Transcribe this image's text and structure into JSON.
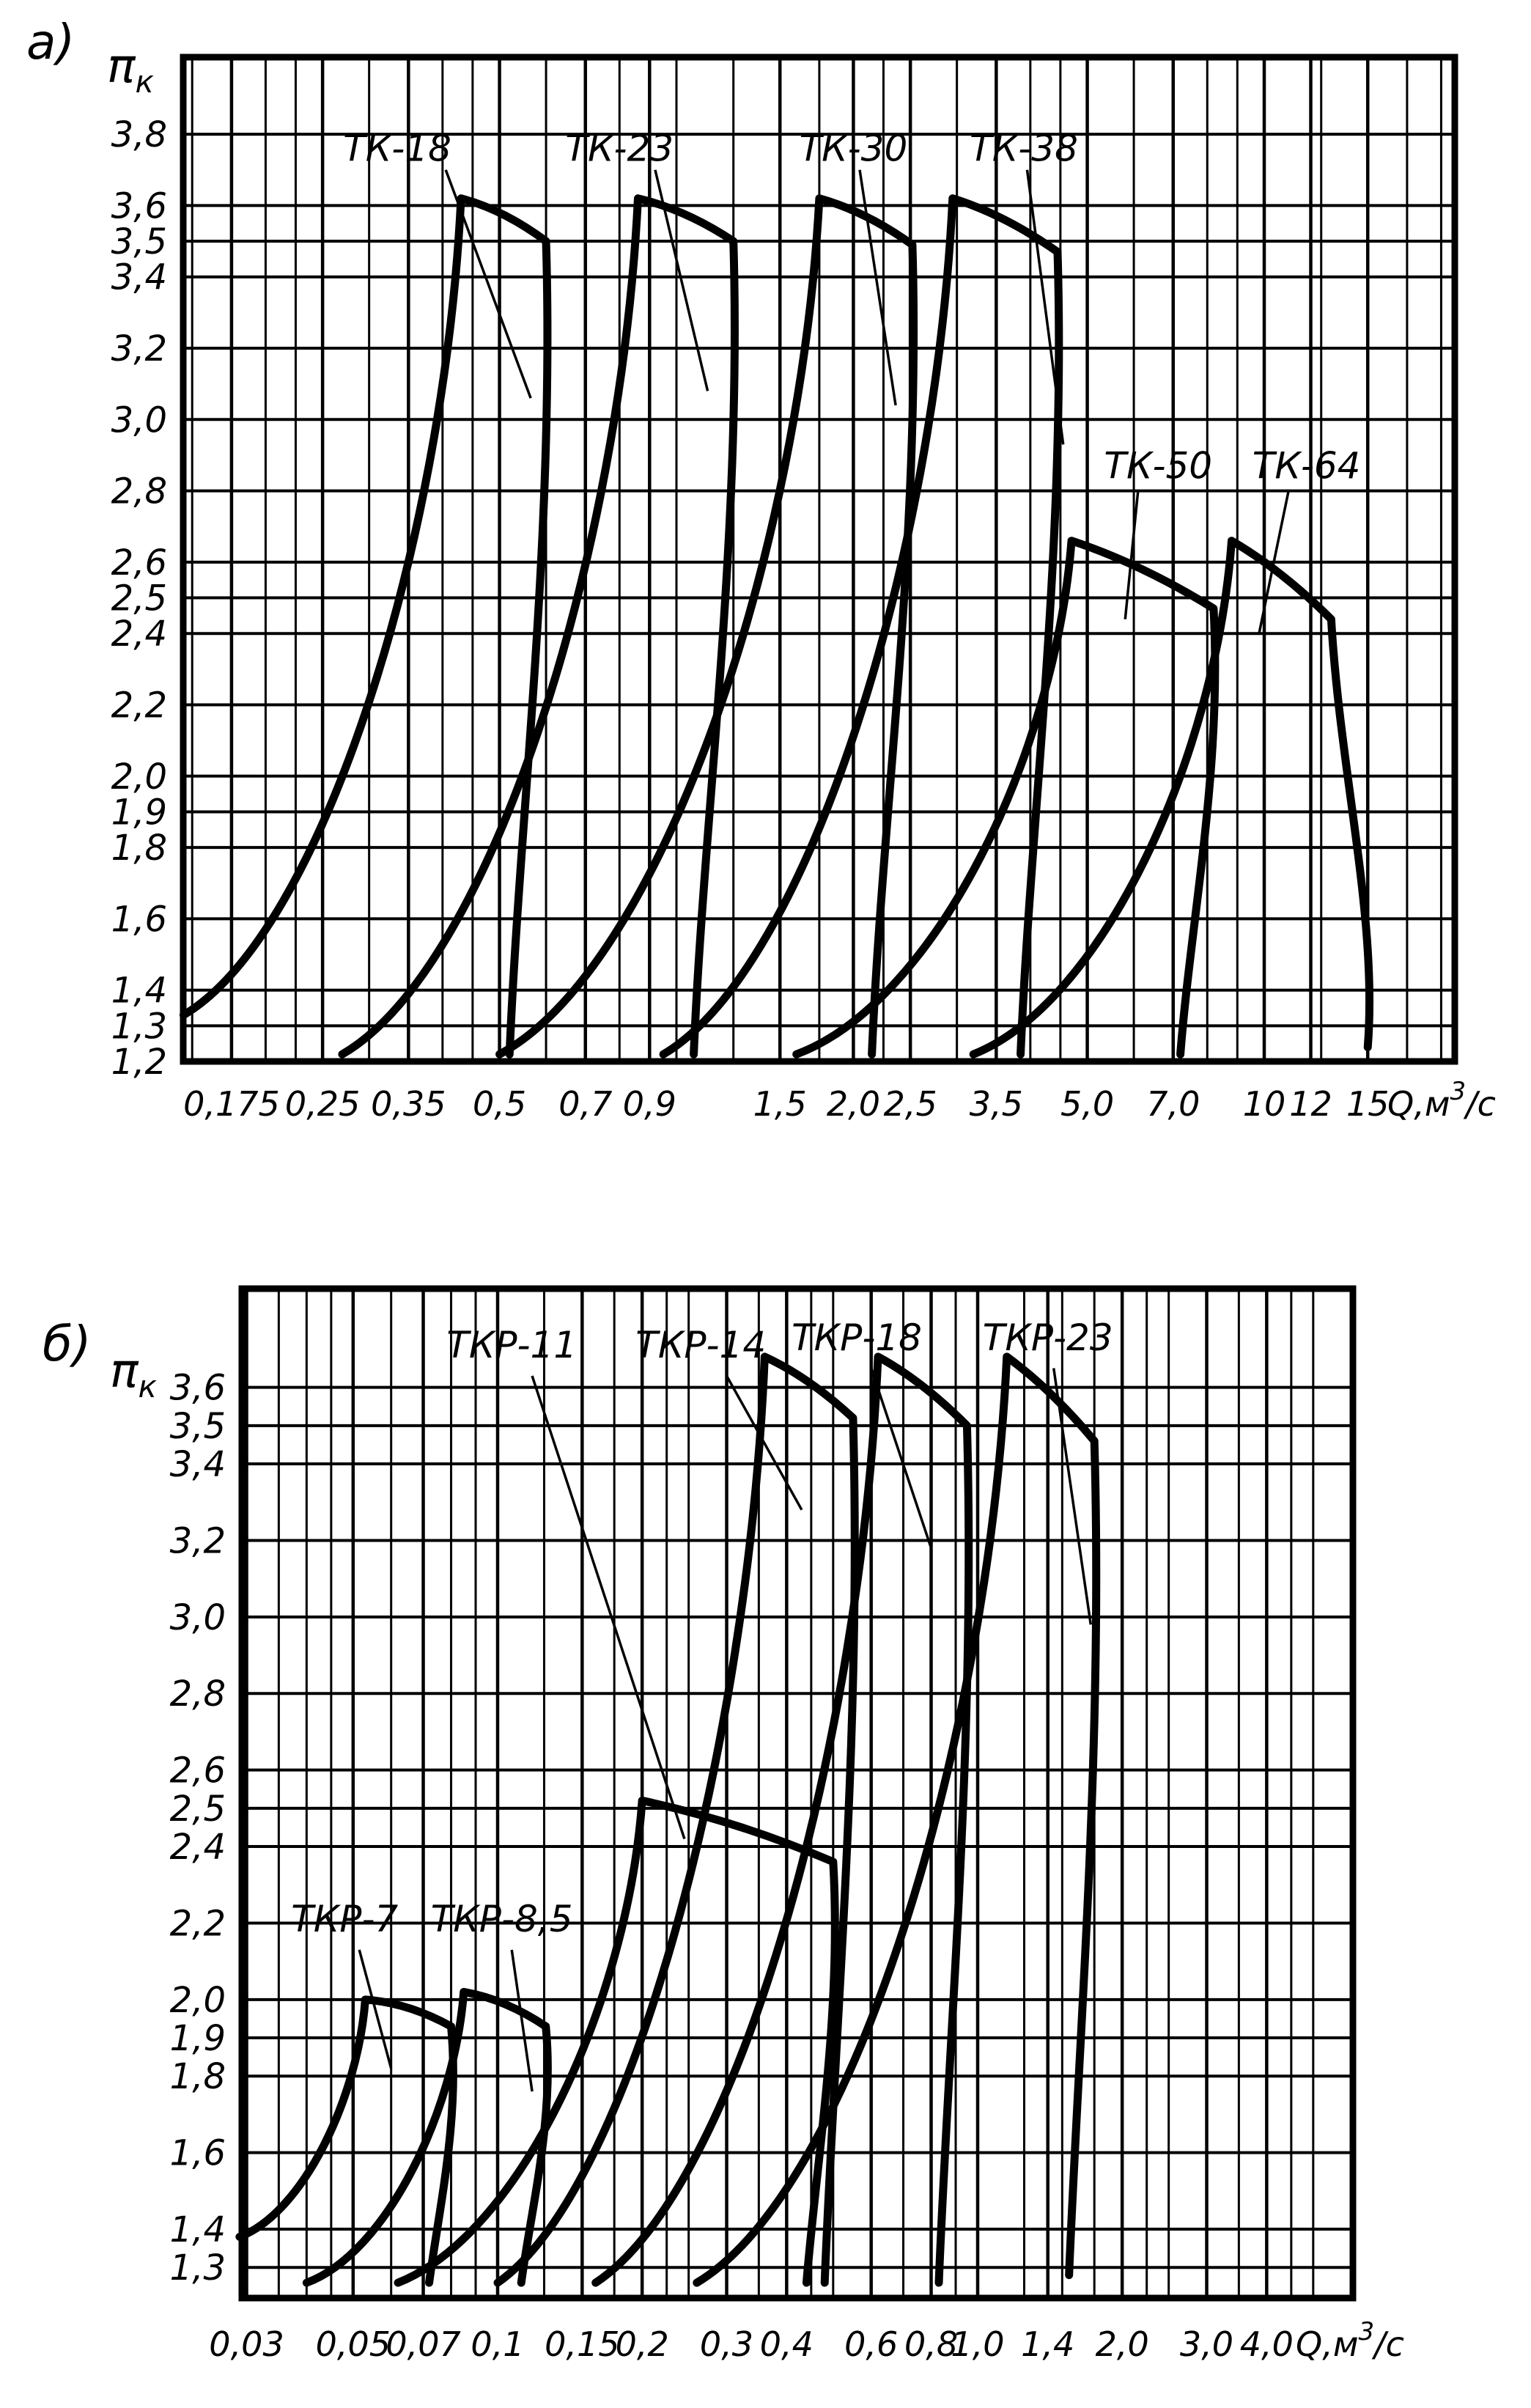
{
  "page": {
    "background": "#ffffff",
    "ink": "#000000"
  },
  "chart_data": [
    {
      "type": "line",
      "panel_label": "а)",
      "y_axis_symbol": "π",
      "y_axis_subscript": "к",
      "x_axis_unit_prefix": "Q,м",
      "x_axis_unit_sup": "3",
      "x_axis_unit_suffix": "/с",
      "x_scale": "log",
      "y_scale": "linear",
      "x_range": [
        0.145,
        21.0
      ],
      "y_range": [
        1.2,
        4.02
      ],
      "grid": true,
      "legend_position": "labels-with-leaders",
      "minor_x_mantissas": [
        1,
        1.25,
        1.5,
        1.75,
        2,
        2.25,
        2.5,
        3,
        3.5,
        4,
        4.5,
        5,
        6,
        7,
        8,
        9
      ],
      "x_ticks": [
        {
          "v": 0.175,
          "label": "0,175"
        },
        {
          "v": 0.25,
          "label": "0,25"
        },
        {
          "v": 0.35,
          "label": "0,35"
        },
        {
          "v": 0.5,
          "label": "0,5"
        },
        {
          "v": 0.7,
          "label": "0,7"
        },
        {
          "v": 0.9,
          "label": "0,9"
        },
        {
          "v": 1.5,
          "label": "1,5"
        },
        {
          "v": 2.0,
          "label": "2,0"
        },
        {
          "v": 2.5,
          "label": "2,5"
        },
        {
          "v": 3.5,
          "label": "3,5"
        },
        {
          "v": 5.0,
          "label": "5,0"
        },
        {
          "v": 7.0,
          "label": "7,0"
        },
        {
          "v": 10,
          "label": "10"
        },
        {
          "v": 12,
          "label": "12"
        },
        {
          "v": 15,
          "label": "15"
        }
      ],
      "y_ticks": [
        {
          "v": 3.8,
          "label": "3,8"
        },
        {
          "v": 3.6,
          "label": "3,6"
        },
        {
          "v": 3.5,
          "label": "3,5"
        },
        {
          "v": 3.4,
          "label": "3,4"
        },
        {
          "v": 3.2,
          "label": "3,2"
        },
        {
          "v": 3.0,
          "label": "3,0"
        },
        {
          "v": 2.8,
          "label": "2,8"
        },
        {
          "v": 2.6,
          "label": "2,6"
        },
        {
          "v": 2.5,
          "label": "2,5"
        },
        {
          "v": 2.4,
          "label": "2,4"
        },
        {
          "v": 2.2,
          "label": "2,2"
        },
        {
          "v": 2.0,
          "label": "2,0"
        },
        {
          "v": 1.9,
          "label": "1,9"
        },
        {
          "v": 1.8,
          "label": "1,8"
        },
        {
          "v": 1.6,
          "label": "1,6"
        },
        {
          "v": 1.4,
          "label": "1,4"
        },
        {
          "v": 1.3,
          "label": "1,3"
        },
        {
          "v": 1.2,
          "label": "1,2"
        }
      ],
      "series": [
        {
          "name": "ТК-18",
          "bottom_left": [
            0.145,
            1.33
          ],
          "peak": [
            0.43,
            3.62
          ],
          "top_right": [
            0.6,
            3.5
          ],
          "bottom_right": [
            0.52,
            1.22
          ],
          "label_at": [
            0.335,
            3.76
          ],
          "leader": [
            [
              0.405,
              3.7
            ],
            [
              0.565,
              3.06
            ]
          ]
        },
        {
          "name": "ТК-23",
          "bottom_left": [
            0.27,
            1.22
          ],
          "peak": [
            0.86,
            3.62
          ],
          "top_right": [
            1.25,
            3.5
          ],
          "bottom_right": [
            1.07,
            1.22
          ],
          "label_at": [
            0.8,
            3.76
          ],
          "leader": [
            [
              0.92,
              3.7
            ],
            [
              1.13,
              3.08
            ]
          ]
        },
        {
          "name": "ТК-30",
          "bottom_left": [
            0.5,
            1.22
          ],
          "peak": [
            1.75,
            3.62
          ],
          "top_right": [
            2.52,
            3.49
          ],
          "bottom_right": [
            2.15,
            1.22
          ],
          "label_at": [
            2.0,
            3.76
          ],
          "leader": [
            [
              2.05,
              3.7
            ],
            [
              2.36,
              3.04
            ]
          ]
        },
        {
          "name": "ТК-38",
          "bottom_left": [
            0.95,
            1.22
          ],
          "peak": [
            2.95,
            3.62
          ],
          "top_right": [
            4.45,
            3.47
          ],
          "bottom_right": [
            3.85,
            1.22
          ],
          "label_at": [
            3.9,
            3.76
          ],
          "leader": [
            [
              3.95,
              3.7
            ],
            [
              4.55,
              2.93
            ]
          ]
        },
        {
          "name": "ТК-50",
          "bottom_left": [
            1.6,
            1.22
          ],
          "peak": [
            4.7,
            2.66
          ],
          "top_right": [
            8.2,
            2.47
          ],
          "bottom_right": [
            7.2,
            1.22
          ],
          "label_at": [
            6.6,
            2.87
          ],
          "leader": [
            [
              6.1,
              2.8
            ],
            [
              5.8,
              2.44
            ]
          ]
        },
        {
          "name": "ТК-64",
          "bottom_left": [
            3.2,
            1.22
          ],
          "peak": [
            8.8,
            2.66
          ],
          "top_right": [
            13.0,
            2.44
          ],
          "bottom_right": [
            15.0,
            1.24
          ],
          "label_at": [
            11.8,
            2.87
          ],
          "leader": [
            [
              11.0,
              2.8
            ],
            [
              9.8,
              2.4
            ]
          ]
        }
      ]
    },
    {
      "type": "line",
      "panel_label": "б)",
      "y_axis_symbol": "π",
      "y_axis_subscript": "к",
      "x_axis_unit_prefix": "Q,м",
      "x_axis_unit_sup": "3",
      "x_axis_unit_suffix": "/с",
      "x_scale": "log",
      "y_scale": "linear",
      "x_range": [
        0.0293,
        6.05
      ],
      "y_range": [
        1.22,
        3.86
      ],
      "grid": true,
      "legend_position": "labels-with-leaders",
      "minor_x_mantissas": [
        1,
        1.25,
        1.5,
        1.75,
        2,
        2.25,
        2.5,
        3,
        3.5,
        4,
        4.5,
        5,
        6,
        7,
        8,
        9
      ],
      "x_ticks": [
        {
          "v": 0.03,
          "label": "0,03"
        },
        {
          "v": 0.05,
          "label": "0,05"
        },
        {
          "v": 0.07,
          "label": "0,07"
        },
        {
          "v": 0.1,
          "label": "0,1"
        },
        {
          "v": 0.15,
          "label": "0,15"
        },
        {
          "v": 0.2,
          "label": "0,2"
        },
        {
          "v": 0.3,
          "label": "0,3"
        },
        {
          "v": 0.4,
          "label": "0,4"
        },
        {
          "v": 0.6,
          "label": "0,6"
        },
        {
          "v": 0.8,
          "label": "0,8"
        },
        {
          "v": 1.0,
          "label": "1,0"
        },
        {
          "v": 1.4,
          "label": "1,4"
        },
        {
          "v": 2.0,
          "label": "2,0"
        },
        {
          "v": 3.0,
          "label": "3,0"
        },
        {
          "v": 4.0,
          "label": "4,0"
        }
      ],
      "y_ticks": [
        {
          "v": 3.6,
          "label": "3,6"
        },
        {
          "v": 3.5,
          "label": "3,5"
        },
        {
          "v": 3.4,
          "label": "3,4"
        },
        {
          "v": 3.2,
          "label": "3,2"
        },
        {
          "v": 3.0,
          "label": "3,0"
        },
        {
          "v": 2.8,
          "label": "2,8"
        },
        {
          "v": 2.6,
          "label": "2,6"
        },
        {
          "v": 2.5,
          "label": "2,5"
        },
        {
          "v": 2.4,
          "label": "2,4"
        },
        {
          "v": 2.2,
          "label": "2,2"
        },
        {
          "v": 2.0,
          "label": "2,0"
        },
        {
          "v": 1.9,
          "label": "1,9"
        },
        {
          "v": 1.8,
          "label": "1,8"
        },
        {
          "v": 1.6,
          "label": "1,6"
        },
        {
          "v": 1.4,
          "label": "1,4"
        },
        {
          "v": 1.3,
          "label": "1,3"
        }
      ],
      "series": [
        {
          "name": "ТКР-7",
          "bottom_left": [
            0.029,
            1.38
          ],
          "peak": [
            0.053,
            2.0
          ],
          "top_right": [
            0.08,
            1.93
          ],
          "bottom_right": [
            0.072,
            1.26
          ],
          "label_at": [
            0.048,
            2.21
          ],
          "leader": [
            [
              0.0515,
              2.13
            ],
            [
              0.06,
              1.82
            ]
          ]
        },
        {
          "name": "ТКР-8,5",
          "bottom_left": [
            0.04,
            1.26
          ],
          "peak": [
            0.085,
            2.02
          ],
          "top_right": [
            0.126,
            1.93
          ],
          "bottom_right": [
            0.112,
            1.26
          ],
          "label_at": [
            0.102,
            2.21
          ],
          "leader": [
            [
              0.107,
              2.13
            ],
            [
              0.118,
              1.76
            ]
          ]
        },
        {
          "name": "ТКР-11",
          "bottom_left": [
            0.062,
            1.26
          ],
          "peak": [
            0.2,
            2.52
          ],
          "top_right": [
            0.5,
            2.36
          ],
          "bottom_right": [
            0.44,
            1.26
          ],
          "label_at": [
            0.107,
            3.71
          ],
          "leader": [
            [
              0.118,
              3.63
            ],
            [
              0.245,
              2.42
            ]
          ]
        },
        {
          "name": "ТКР-14",
          "bottom_left": [
            0.1,
            1.26
          ],
          "peak": [
            0.36,
            3.68
          ],
          "top_right": [
            0.55,
            3.52
          ],
          "bottom_right": [
            0.48,
            1.26
          ],
          "label_at": [
            0.265,
            3.71
          ],
          "leader": [
            [
              0.3,
              3.63
            ],
            [
              0.43,
              3.28
            ]
          ]
        },
        {
          "name": "ТКР-18",
          "bottom_left": [
            0.16,
            1.26
          ],
          "peak": [
            0.62,
            3.68
          ],
          "top_right": [
            0.95,
            3.5
          ],
          "bottom_right": [
            0.83,
            1.26
          ],
          "label_at": [
            0.56,
            3.73
          ],
          "leader": [
            [
              0.6,
              3.65
            ],
            [
              0.8,
              3.18
            ]
          ]
        },
        {
          "name": "ТКР-23",
          "bottom_left": [
            0.26,
            1.26
          ],
          "peak": [
            1.15,
            3.68
          ],
          "top_right": [
            1.75,
            3.46
          ],
          "bottom_right": [
            1.55,
            1.28
          ],
          "label_at": [
            1.4,
            3.73
          ],
          "leader": [
            [
              1.44,
              3.65
            ],
            [
              1.72,
              2.98
            ]
          ]
        }
      ]
    }
  ]
}
